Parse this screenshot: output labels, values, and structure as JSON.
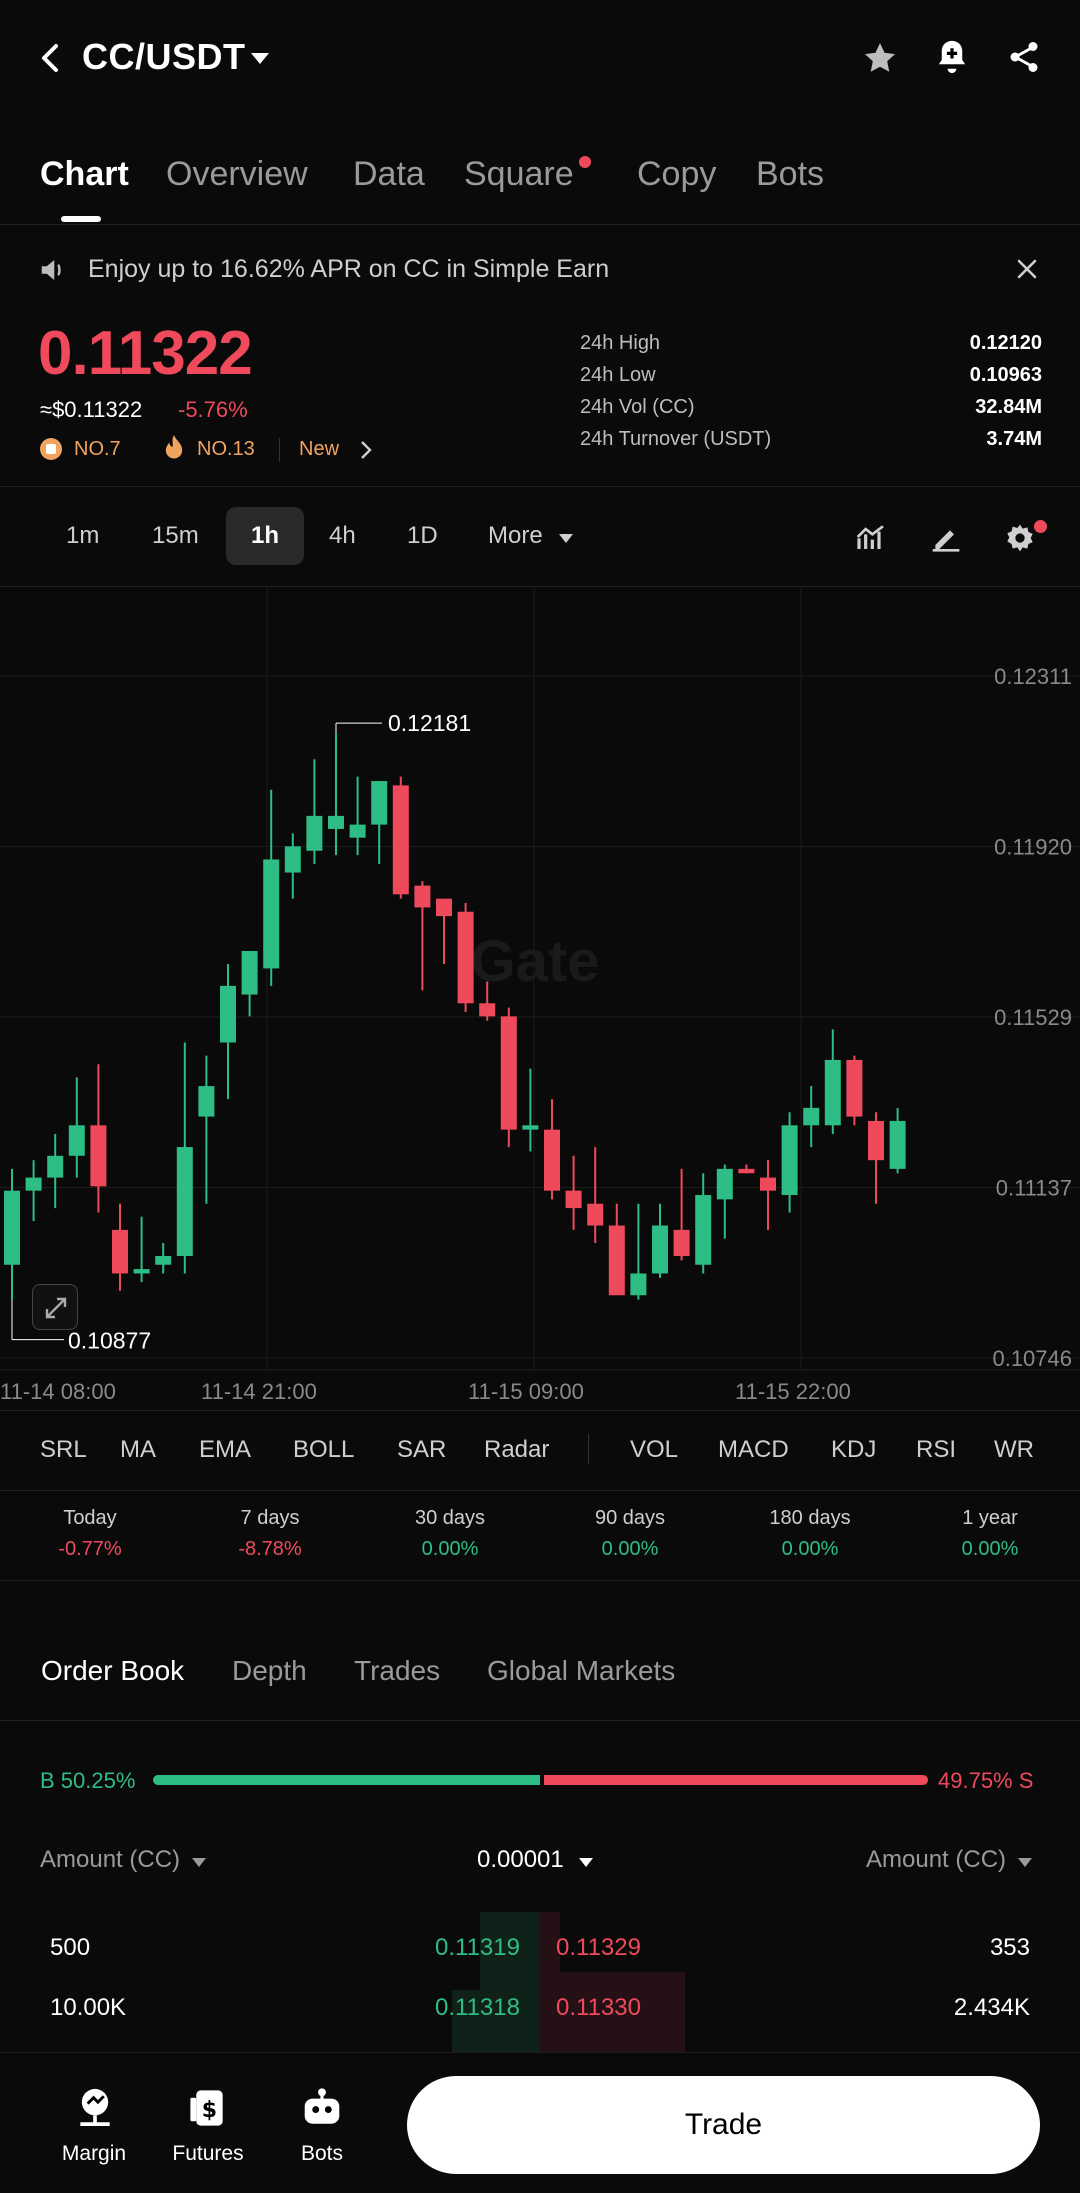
{
  "header": {
    "title": "CC/USDT"
  },
  "tabs": [
    "Chart",
    "Overview",
    "Data",
    "Square",
    "Copy",
    "Bots"
  ],
  "banner": {
    "text": "Enjoy up to 16.62% APR on CC in Simple Earn"
  },
  "price": {
    "last": "0.11322",
    "usd": "≈$0.11322",
    "change": "-5.76%",
    "rank": "NO.7",
    "hot": "NO.13",
    "new": "New"
  },
  "stats": [
    {
      "label": "24h High",
      "value": "0.12120"
    },
    {
      "label": "24h Low",
      "value": "0.10963"
    },
    {
      "label": "24h Vol (CC)",
      "value": "32.84M"
    },
    {
      "label": "24h Turnover (USDT)",
      "value": "3.74M"
    }
  ],
  "timeframes": [
    "1m",
    "15m",
    "1h",
    "4h",
    "1D",
    "More"
  ],
  "chart": {
    "watermark": "Gate",
    "y_labels": [
      "0.12311",
      "0.11920",
      "0.11529",
      "0.11137",
      "0.10746"
    ],
    "x_labels": [
      "11-14 08:00",
      "11-14 21:00",
      "11-15 09:00",
      "11-15 22:00"
    ],
    "high_label": "0.12181",
    "low_label": "0.10877"
  },
  "chart_data": {
    "type": "candlestick",
    "ylim": [
      0.10746,
      0.12311
    ],
    "candles": [
      {
        "o": 0.1096,
        "h": 0.1118,
        "l": 0.1088,
        "c": 0.1113
      },
      {
        "o": 0.1113,
        "h": 0.112,
        "l": 0.1106,
        "c": 0.1116
      },
      {
        "o": 0.1116,
        "h": 0.1126,
        "l": 0.1109,
        "c": 0.1121
      },
      {
        "o": 0.1121,
        "h": 0.1139,
        "l": 0.1116,
        "c": 0.1128
      },
      {
        "o": 0.1128,
        "h": 0.1142,
        "l": 0.1108,
        "c": 0.1114
      },
      {
        "o": 0.1104,
        "h": 0.111,
        "l": 0.109,
        "c": 0.1094
      },
      {
        "o": 0.1094,
        "h": 0.1107,
        "l": 0.1092,
        "c": 0.1095
      },
      {
        "o": 0.1096,
        "h": 0.1101,
        "l": 0.1094,
        "c": 0.1098
      },
      {
        "o": 0.1098,
        "h": 0.1147,
        "l": 0.1094,
        "c": 0.1123
      },
      {
        "o": 0.113,
        "h": 0.1144,
        "l": 0.111,
        "c": 0.1137
      },
      {
        "o": 0.1147,
        "h": 0.1165,
        "l": 0.1134,
        "c": 0.116
      },
      {
        "o": 0.1158,
        "h": 0.1168,
        "l": 0.1153,
        "c": 0.1168
      },
      {
        "o": 0.1164,
        "h": 0.1205,
        "l": 0.116,
        "c": 0.1189
      },
      {
        "o": 0.1186,
        "h": 0.1195,
        "l": 0.118,
        "c": 0.1192
      },
      {
        "o": 0.1191,
        "h": 0.1212,
        "l": 0.1188,
        "c": 0.1199
      },
      {
        "o": 0.1196,
        "h": 0.1218,
        "l": 0.119,
        "c": 0.1199
      },
      {
        "o": 0.1194,
        "h": 0.1208,
        "l": 0.119,
        "c": 0.1197
      },
      {
        "o": 0.1197,
        "h": 0.1206,
        "l": 0.1188,
        "c": 0.1207
      },
      {
        "o": 0.1206,
        "h": 0.1208,
        "l": 0.118,
        "c": 0.1181
      },
      {
        "o": 0.1183,
        "h": 0.1184,
        "l": 0.1159,
        "c": 0.1178
      },
      {
        "o": 0.118,
        "h": 0.118,
        "l": 0.1165,
        "c": 0.1176
      },
      {
        "o": 0.1177,
        "h": 0.1179,
        "l": 0.1154,
        "c": 0.1156
      },
      {
        "o": 0.1156,
        "h": 0.1161,
        "l": 0.1152,
        "c": 0.1153
      },
      {
        "o": 0.1153,
        "h": 0.1155,
        "l": 0.1123,
        "c": 0.1127
      },
      {
        "o": 0.1127,
        "h": 0.1141,
        "l": 0.1122,
        "c": 0.1128
      },
      {
        "o": 0.1127,
        "h": 0.1134,
        "l": 0.1111,
        "c": 0.1113
      },
      {
        "o": 0.1113,
        "h": 0.1121,
        "l": 0.1104,
        "c": 0.1109
      },
      {
        "o": 0.111,
        "h": 0.1123,
        "l": 0.1101,
        "c": 0.1105
      },
      {
        "o": 0.1105,
        "h": 0.111,
        "l": 0.1089,
        "c": 0.1089
      },
      {
        "o": 0.1089,
        "h": 0.111,
        "l": 0.1088,
        "c": 0.1094
      },
      {
        "o": 0.1094,
        "h": 0.111,
        "l": 0.1093,
        "c": 0.1105
      },
      {
        "o": 0.1104,
        "h": 0.1118,
        "l": 0.1097,
        "c": 0.1098
      },
      {
        "o": 0.1096,
        "h": 0.1117,
        "l": 0.1094,
        "c": 0.1112
      },
      {
        "o": 0.1111,
        "h": 0.1119,
        "l": 0.1102,
        "c": 0.1118
      },
      {
        "o": 0.1118,
        "h": 0.1119,
        "l": 0.1117,
        "c": 0.1117
      },
      {
        "o": 0.1116,
        "h": 0.112,
        "l": 0.1104,
        "c": 0.1113
      },
      {
        "o": 0.1112,
        "h": 0.1131,
        "l": 0.1108,
        "c": 0.1128
      },
      {
        "o": 0.1128,
        "h": 0.1137,
        "l": 0.1123,
        "c": 0.1132
      },
      {
        "o": 0.1128,
        "h": 0.115,
        "l": 0.1126,
        "c": 0.1143
      },
      {
        "o": 0.1143,
        "h": 0.1144,
        "l": 0.1128,
        "c": 0.113
      },
      {
        "o": 0.1129,
        "h": 0.1131,
        "l": 0.111,
        "c": 0.112
      },
      {
        "o": 0.1118,
        "h": 0.1132,
        "l": 0.1117,
        "c": 0.1129
      }
    ]
  },
  "indicators": [
    "SRL",
    "MA",
    "EMA",
    "BOLL",
    "SAR",
    "Radar",
    "VOL",
    "MACD",
    "KDJ",
    "RSI",
    "WR"
  ],
  "performance": [
    {
      "label": "Today",
      "value": "-0.77%",
      "dir": "down"
    },
    {
      "label": "7 days",
      "value": "-8.78%",
      "dir": "down"
    },
    {
      "label": "30 days",
      "value": "0.00%",
      "dir": "up"
    },
    {
      "label": "90 days",
      "value": "0.00%",
      "dir": "up"
    },
    {
      "label": "180 days",
      "value": "0.00%",
      "dir": "up"
    },
    {
      "label": "1 year",
      "value": "0.00%",
      "dir": "up"
    }
  ],
  "orderbook": {
    "tabs": [
      "Order Book",
      "Depth",
      "Trades",
      "Global Markets"
    ],
    "buy_pct": "B 50.25%",
    "sell_pct": "49.75% S",
    "buy_ratio": 0.5025,
    "amount_left": "Amount (CC)",
    "precision": "0.00001",
    "amount_right": "Amount (CC)",
    "rows": [
      {
        "bid_amt": "500",
        "bid": "0.11319",
        "ask": "0.11329",
        "ask_amt": "353"
      },
      {
        "bid_amt": "10.00K",
        "bid": "0.11318",
        "ask": "0.11330",
        "ask_amt": "2.434K"
      }
    ]
  },
  "bottom_nav": {
    "items": [
      "Margin",
      "Futures",
      "Bots"
    ],
    "trade": "Trade"
  },
  "colors": {
    "up": "#2ebd85",
    "down": "#ef4a5c",
    "bg": "#0a0a0a"
  }
}
